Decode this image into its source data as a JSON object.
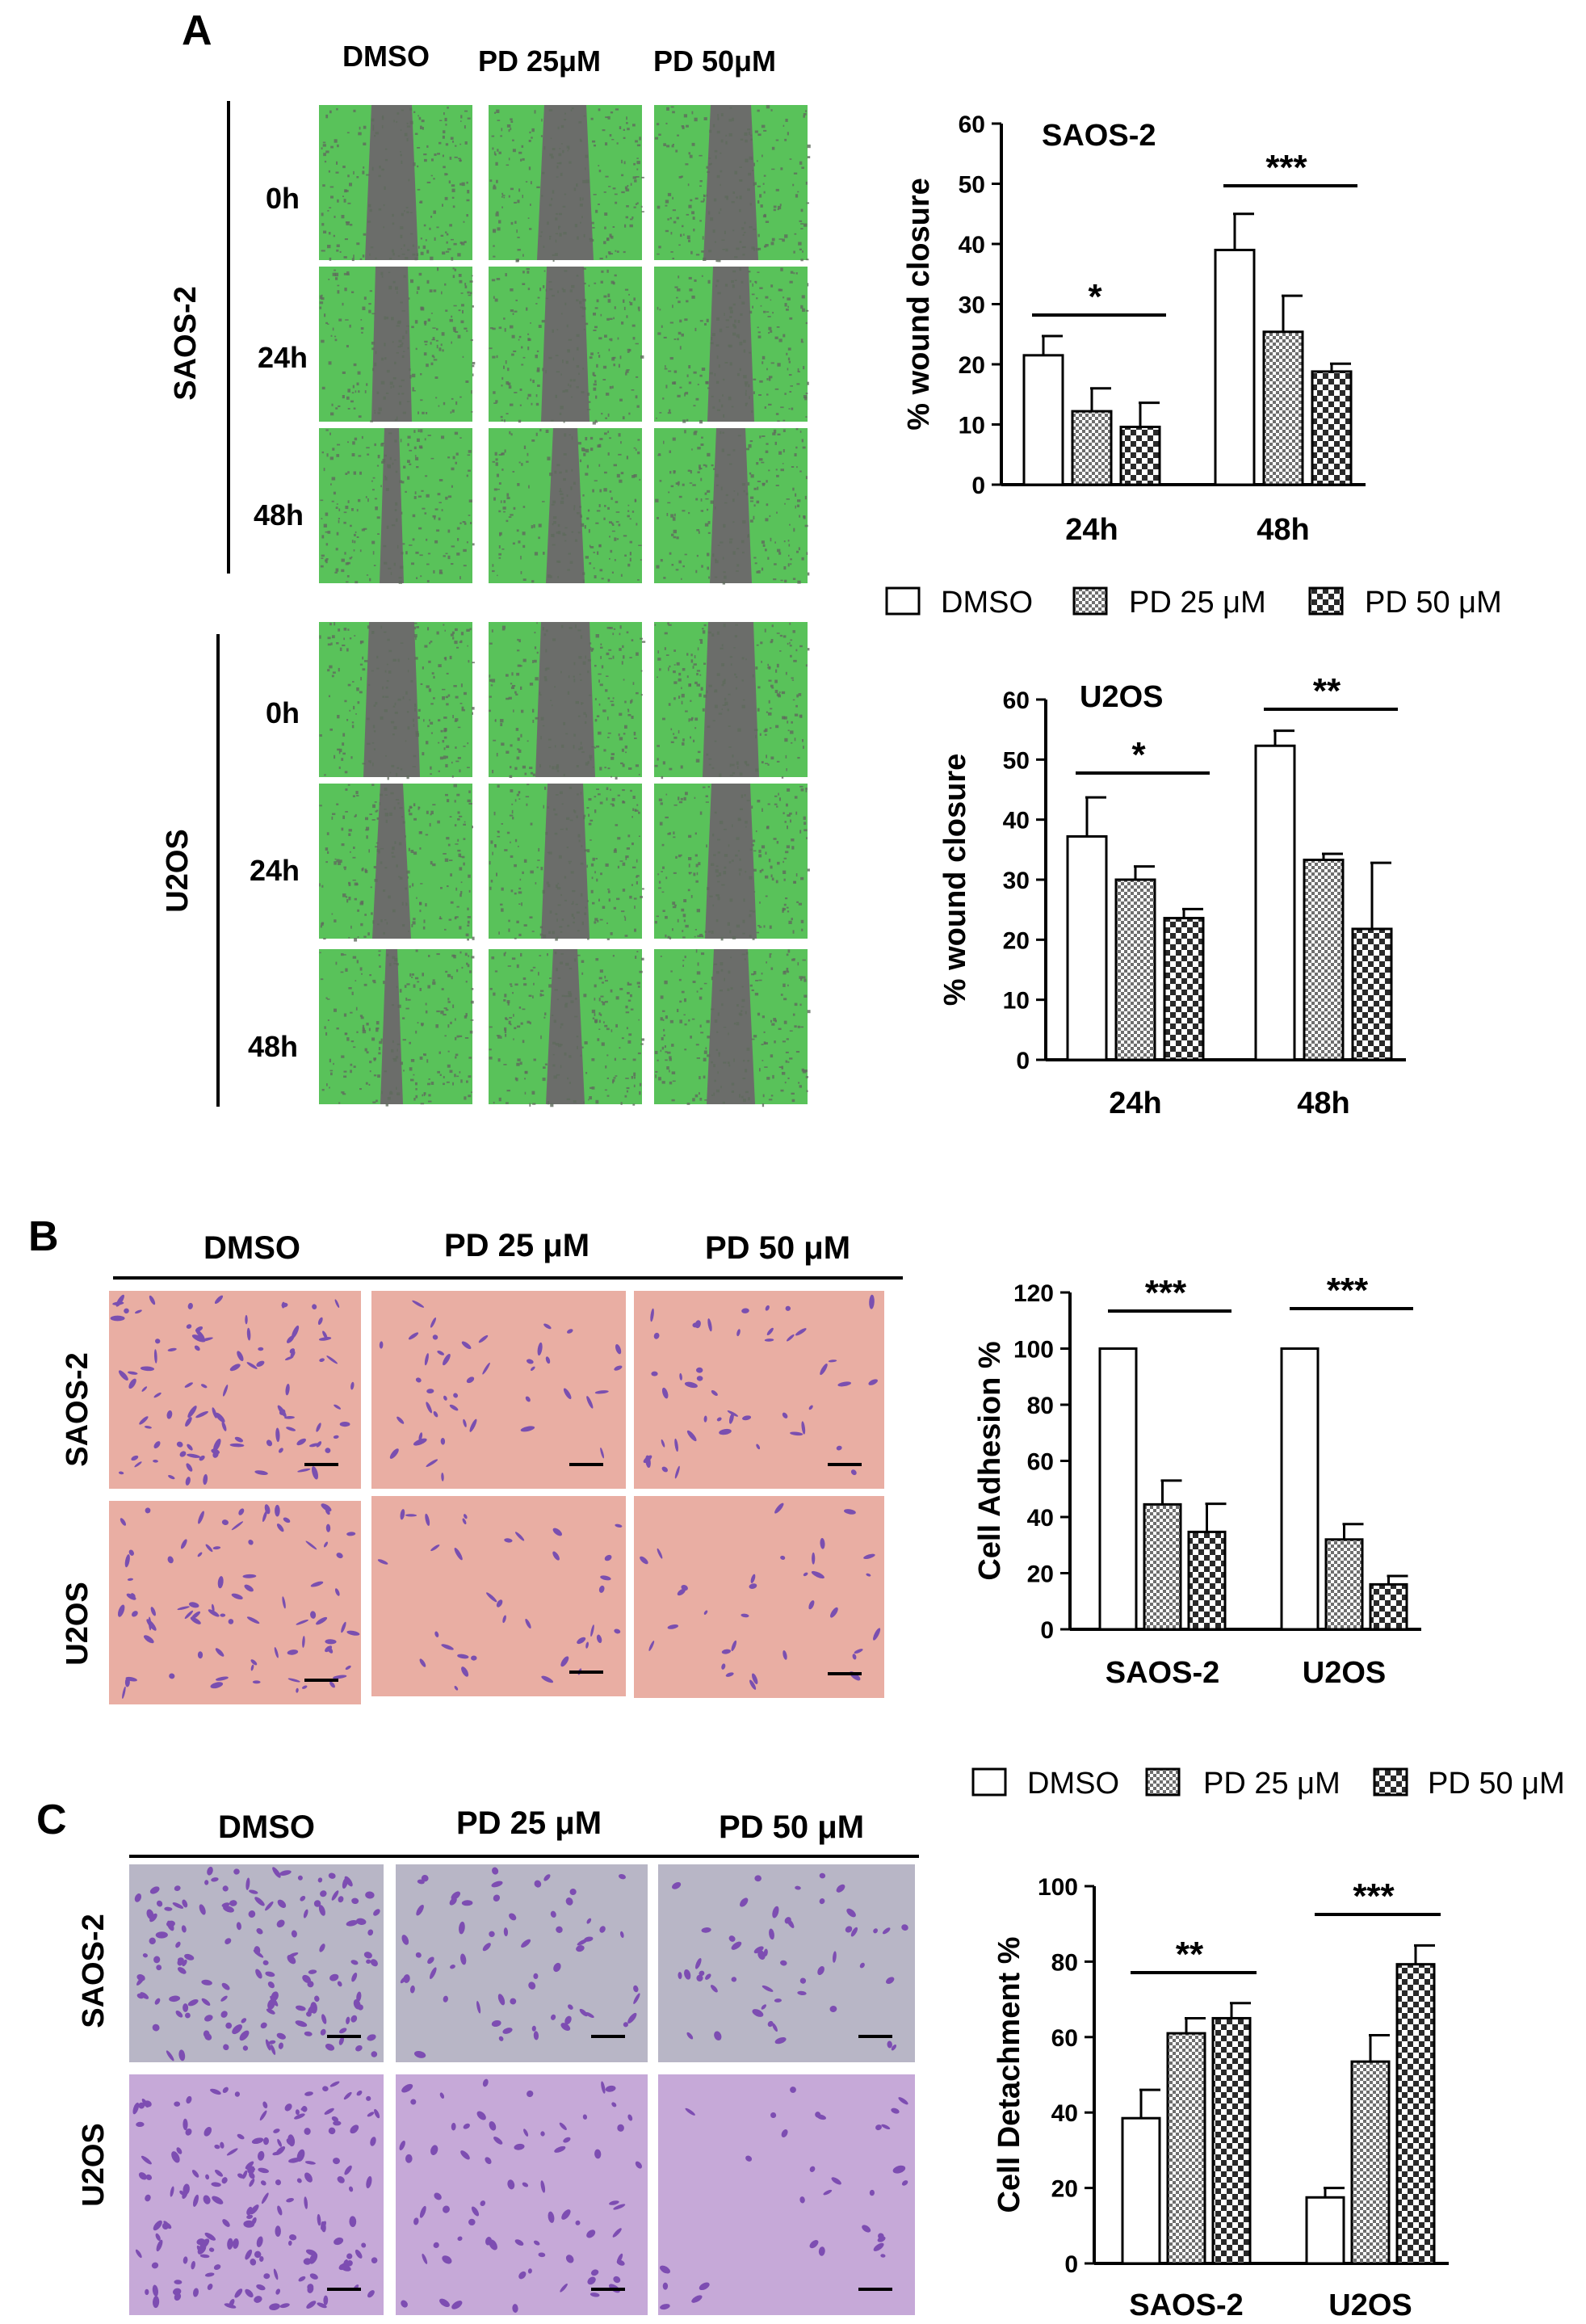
{
  "panels": {
    "A": {
      "label": "A",
      "columns": [
        "DMSO",
        "PD 25μM",
        "PD 50μM"
      ],
      "sections": [
        {
          "label": "SAOS-2",
          "rows": [
            "0h",
            "24h",
            "48h"
          ]
        },
        {
          "label": "U2OS",
          "rows": [
            "0h",
            "24h",
            "48h"
          ]
        }
      ]
    },
    "B": {
      "label": "B",
      "columns": [
        "DMSO",
        "PD 25 μM",
        "PD 50 μM"
      ],
      "rows": [
        "SAOS-2",
        "U2OS"
      ]
    },
    "C": {
      "label": "C",
      "columns": [
        "DMSO",
        "PD 25 μM",
        "PD 50 μM"
      ],
      "rows": [
        "SAOS-2",
        "U2OS"
      ]
    }
  },
  "legend": {
    "items": [
      {
        "label": "DMSO",
        "pattern": "empty"
      },
      {
        "label": "PD 25 μM",
        "pattern": "fine-check"
      },
      {
        "label": "PD 50 μM",
        "pattern": "coarse-check"
      }
    ]
  },
  "colors": {
    "wound_green": "#59c25a",
    "wound_gap": "#6b6d6a",
    "adhesion_bg": "#e9aea3",
    "adhesion_cell": "#7a4fb0",
    "detach_bg_1": "#b8b6c6",
    "detach_bg_2": "#c6a9d8",
    "detach_cell": "#7d4db2"
  },
  "chart_data": [
    {
      "id": "a_saos",
      "type": "bar",
      "title": "SAOS-2",
      "ylabel": "% wound closure",
      "ylim": [
        0,
        60
      ],
      "yticks": [
        0,
        10,
        20,
        30,
        40,
        50,
        60
      ],
      "categories": [
        "24h",
        "48h"
      ],
      "series": [
        {
          "name": "DMSO",
          "values": [
            21.5,
            39
          ],
          "errors": [
            3.2,
            6
          ]
        },
        {
          "name": "PD 25 μM",
          "values": [
            12.2,
            25.4
          ],
          "errors": [
            3.8,
            6
          ]
        },
        {
          "name": "PD 50 μM",
          "values": [
            9.6,
            18.8
          ],
          "errors": [
            4,
            1.3
          ]
        }
      ],
      "significance": [
        "*",
        "***"
      ]
    },
    {
      "id": "a_u2os",
      "type": "bar",
      "title": "U2OS",
      "ylabel": "% wound closure",
      "ylim": [
        0,
        60
      ],
      "yticks": [
        0,
        10,
        20,
        30,
        40,
        50,
        60
      ],
      "categories": [
        "24h",
        "48h"
      ],
      "series": [
        {
          "name": "DMSO",
          "values": [
            37.2,
            52.3
          ],
          "errors": [
            6.5,
            2.5
          ]
        },
        {
          "name": "PD 25 μM",
          "values": [
            30,
            33.3
          ],
          "errors": [
            2.2,
            1
          ]
        },
        {
          "name": "PD 50 μM",
          "values": [
            23.6,
            21.8
          ],
          "errors": [
            1.5,
            11
          ]
        }
      ],
      "significance": [
        "*",
        "**"
      ]
    },
    {
      "id": "b_adh",
      "type": "bar",
      "title": "",
      "ylabel": "Cell Adhesion %",
      "ylim": [
        0,
        120
      ],
      "yticks": [
        0,
        20,
        40,
        60,
        80,
        100,
        120
      ],
      "categories": [
        "SAOS-2",
        "U2OS"
      ],
      "series": [
        {
          "name": "DMSO",
          "values": [
            100,
            100
          ],
          "errors": [
            0,
            0
          ]
        },
        {
          "name": "PD 25 μM",
          "values": [
            44.5,
            32
          ],
          "errors": [
            8.5,
            5.5
          ]
        },
        {
          "name": "PD 50 μM",
          "values": [
            34.7,
            16
          ],
          "errors": [
            10,
            3
          ]
        }
      ],
      "significance": [
        "***",
        "***"
      ]
    },
    {
      "id": "c_det",
      "type": "bar",
      "title": "",
      "ylabel": "Cell Detachment %",
      "ylim": [
        0,
        100
      ],
      "yticks": [
        0,
        20,
        40,
        60,
        80,
        100
      ],
      "categories": [
        "SAOS-2",
        "U2OS"
      ],
      "series": [
        {
          "name": "DMSO",
          "values": [
            38.5,
            17.5
          ],
          "errors": [
            7.5,
            2.5
          ]
        },
        {
          "name": "PD 25 μM",
          "values": [
            61,
            53.5
          ],
          "errors": [
            4,
            7
          ]
        },
        {
          "name": "PD 50 μM",
          "values": [
            65,
            79.3
          ],
          "errors": [
            4,
            5
          ]
        }
      ],
      "significance": [
        "**",
        "***"
      ]
    }
  ]
}
